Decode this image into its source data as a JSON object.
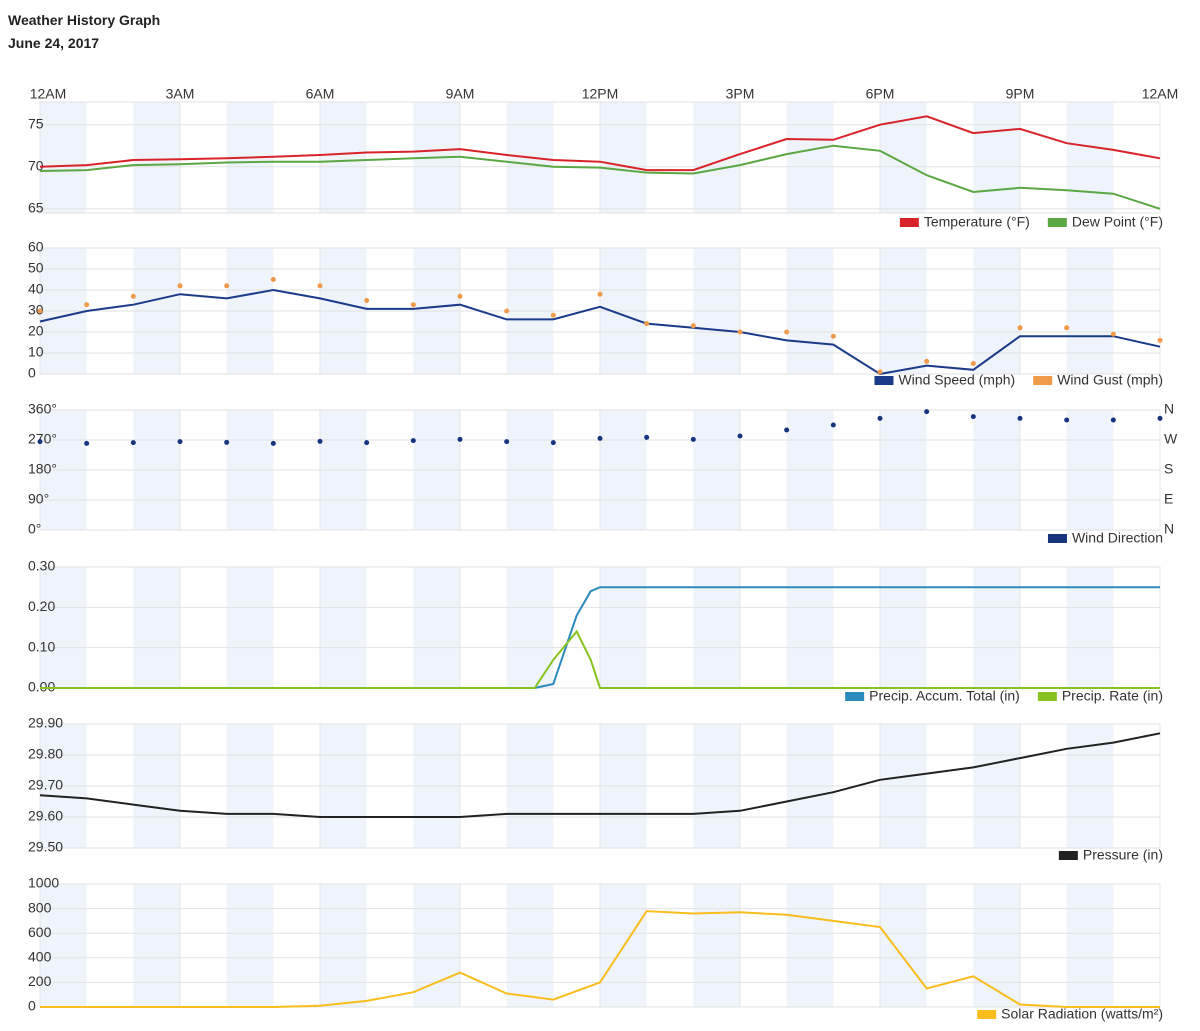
{
  "title": "Weather History Graph",
  "date": "June 24, 2017",
  "chart_data": [
    {
      "type": "line",
      "x": [
        0,
        1,
        2,
        3,
        4,
        5,
        6,
        7,
        8,
        9,
        10,
        11,
        12,
        13,
        14,
        15,
        16,
        17,
        18,
        19,
        20,
        21,
        22,
        23,
        24
      ],
      "xlim": [
        0,
        24
      ],
      "xticks": [
        {
          "value": 0,
          "label": "12AM"
        },
        {
          "value": 3,
          "label": "3AM"
        },
        {
          "value": 6,
          "label": "6AM"
        },
        {
          "value": 9,
          "label": "9AM"
        },
        {
          "value": 12,
          "label": "12PM"
        },
        {
          "value": 15,
          "label": "3PM"
        },
        {
          "value": 18,
          "label": "6PM"
        },
        {
          "value": 21,
          "label": "9PM"
        },
        {
          "value": 24,
          "label": "12AM"
        }
      ],
      "ylim": [
        64.5,
        77.7
      ],
      "yticks": [
        65,
        70,
        75
      ],
      "grid": true,
      "legend": "bottom-right",
      "series": [
        {
          "name": "Temperature (°F)",
          "color": "#d9232b",
          "values": [
            70,
            70.2,
            70.8,
            70.9,
            71,
            71.2,
            71.4,
            71.7,
            71.8,
            72.1,
            71.4,
            70.8,
            70.6,
            69.6,
            69.6,
            71.5,
            73.3,
            73.2,
            75,
            76,
            74,
            74.5,
            72.8,
            72,
            71
          ]
        },
        {
          "name": "Dew Point (°F)",
          "color": "#5aa743",
          "values": [
            69.5,
            69.6,
            70.2,
            70.3,
            70.5,
            70.6,
            70.6,
            70.8,
            71,
            71.2,
            70.6,
            70,
            69.9,
            69.3,
            69.2,
            70.2,
            71.5,
            72.5,
            71.9,
            69,
            67,
            67.5,
            67.2,
            66.8,
            65
          ]
        }
      ]
    },
    {
      "type": "line",
      "x": [
        0,
        1,
        2,
        3,
        4,
        5,
        6,
        7,
        8,
        9,
        10,
        11,
        12,
        13,
        14,
        15,
        16,
        17,
        18,
        19,
        20,
        21,
        22,
        23,
        24
      ],
      "xlim": [
        0,
        24
      ],
      "ylim": [
        0,
        60
      ],
      "yticks": [
        0,
        10,
        20,
        30,
        40,
        50,
        60
      ],
      "grid": true,
      "legend": "bottom-right",
      "series": [
        {
          "name": "Wind Speed (mph)",
          "color": "#1a3a8a",
          "values": [
            25,
            30,
            33,
            38,
            36,
            40,
            36,
            31,
            31,
            33,
            26,
            26,
            32,
            24,
            22,
            20,
            16,
            14,
            0,
            4,
            2,
            18,
            18,
            18,
            13
          ]
        },
        {
          "name": "Wind Gust (mph)",
          "color": "#f09a4a",
          "marker": "dot",
          "values": [
            30,
            33,
            37,
            42,
            42,
            45,
            42,
            35,
            33,
            37,
            30,
            28,
            38,
            24,
            23,
            20,
            20,
            18,
            1,
            6,
            5,
            22,
            22,
            19,
            16
          ]
        }
      ]
    },
    {
      "type": "scatter",
      "x": [
        0,
        1,
        2,
        3,
        4,
        5,
        6,
        7,
        8,
        9,
        10,
        11,
        12,
        13,
        14,
        15,
        16,
        17,
        18,
        19,
        20,
        21,
        22,
        23,
        24
      ],
      "xlim": [
        0,
        24
      ],
      "ylim": [
        0,
        360
      ],
      "yticks": [
        {
          "value": 0,
          "label": "0°"
        },
        {
          "value": 90,
          "label": "90°"
        },
        {
          "value": 180,
          "label": "180°"
        },
        {
          "value": 270,
          "label": "270°"
        },
        {
          "value": 360,
          "label": "360°"
        }
      ],
      "y2lim": [
        0,
        360
      ],
      "y2ticks": [
        {
          "value": 0,
          "label": "N"
        },
        {
          "value": 90,
          "label": "E"
        },
        {
          "value": 180,
          "label": "S"
        },
        {
          "value": 270,
          "label": "W"
        },
        {
          "value": 360,
          "label": "N"
        }
      ],
      "grid": true,
      "legend": "bottom-right",
      "series": [
        {
          "name": "Wind Direction",
          "color": "#17357f",
          "values": [
            265,
            260,
            262,
            265,
            263,
            260,
            266,
            262,
            268,
            272,
            265,
            262,
            275,
            278,
            272,
            282,
            300,
            315,
            335,
            355,
            340,
            335,
            330,
            330,
            335
          ]
        }
      ]
    },
    {
      "type": "line",
      "x": [
        0,
        10.6,
        11,
        11.5,
        11.8,
        12,
        24
      ],
      "xlim": [
        0,
        24
      ],
      "ylim": [
        0,
        0.3
      ],
      "yticks": [
        {
          "value": 0,
          "label": "0.00"
        },
        {
          "value": 0.1,
          "label": "0.10"
        },
        {
          "value": 0.2,
          "label": "0.20"
        },
        {
          "value": 0.3,
          "label": "0.30"
        }
      ],
      "grid": true,
      "legend": "bottom-right",
      "series": [
        {
          "name": "Precip. Accum. Total (in)",
          "color": "#2b8bbd",
          "values": [
            0,
            0,
            0.01,
            0.18,
            0.24,
            0.25,
            0.25
          ]
        },
        {
          "name": "Precip. Rate (in)",
          "color": "#86c320",
          "values": [
            0,
            0,
            0.07,
            0.14,
            0.07,
            0,
            0
          ]
        }
      ]
    },
    {
      "type": "line",
      "x": [
        0,
        1,
        2,
        3,
        4,
        5,
        6,
        7,
        8,
        9,
        10,
        11,
        12,
        13,
        14,
        15,
        16,
        17,
        18,
        19,
        20,
        21,
        22,
        23,
        24
      ],
      "xlim": [
        0,
        24
      ],
      "ylim": [
        29.5,
        29.9
      ],
      "yticks": [
        {
          "value": 29.5,
          "label": "29.50"
        },
        {
          "value": 29.6,
          "label": "29.60"
        },
        {
          "value": 29.7,
          "label": "29.70"
        },
        {
          "value": 29.8,
          "label": "29.80"
        },
        {
          "value": 29.9,
          "label": "29.90"
        }
      ],
      "grid": true,
      "legend": "bottom-right",
      "series": [
        {
          "name": "Pressure (in)",
          "color": "#222222",
          "values": [
            29.67,
            29.66,
            29.64,
            29.62,
            29.61,
            29.61,
            29.6,
            29.6,
            29.6,
            29.6,
            29.61,
            29.61,
            29.61,
            29.61,
            29.61,
            29.62,
            29.65,
            29.68,
            29.72,
            29.74,
            29.76,
            29.79,
            29.82,
            29.84,
            29.87
          ]
        }
      ]
    },
    {
      "type": "line",
      "x": [
        0,
        1,
        2,
        3,
        4,
        5,
        6,
        7,
        8,
        9,
        10,
        11,
        12,
        13,
        14,
        15,
        16,
        17,
        18,
        19,
        20,
        21,
        22,
        23,
        24
      ],
      "xlim": [
        0,
        24
      ],
      "ylim": [
        0,
        1000
      ],
      "yticks": [
        0,
        200,
        400,
        600,
        800,
        1000
      ],
      "grid": true,
      "legend": "bottom-right",
      "series": [
        {
          "name": "Solar Radiation (watts/m²)",
          "color": "#fbbc1e",
          "values": [
            0,
            0,
            0,
            0,
            0,
            0,
            10,
            50,
            120,
            280,
            110,
            60,
            200,
            780,
            760,
            770,
            750,
            700,
            650,
            150,
            250,
            20,
            0,
            0,
            0
          ]
        }
      ]
    }
  ]
}
